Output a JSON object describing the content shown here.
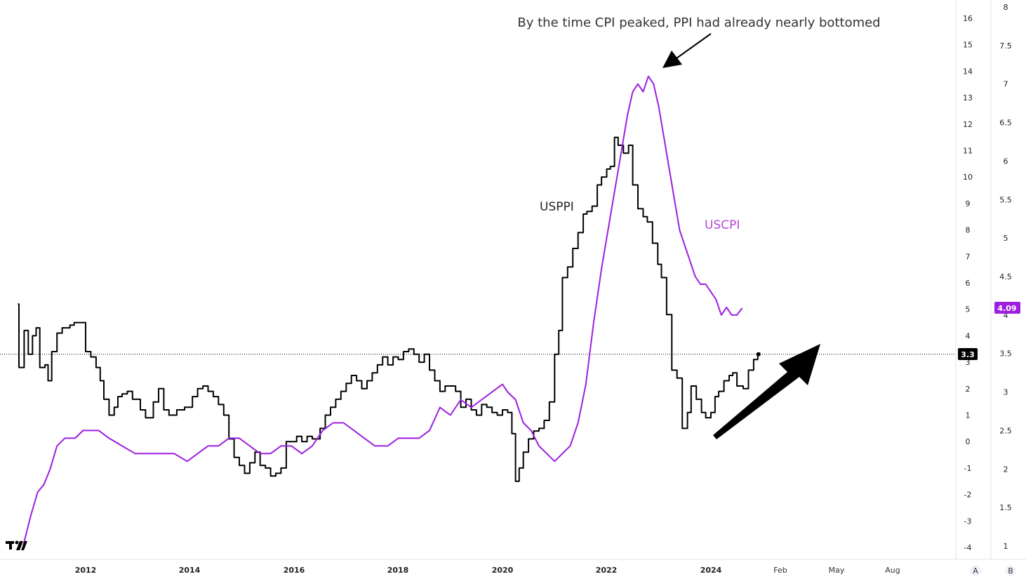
{
  "chart_data": {
    "type": "line",
    "annotation": "By the time CPI peaked, PPI had already nearly bottomed",
    "x_ticks": [
      "2012",
      "2014",
      "2016",
      "2018",
      "2020",
      "2022",
      "2024",
      "Feb",
      "May",
      "Aug"
    ],
    "left_axis": {
      "ticks": [
        16,
        15,
        14,
        13,
        12,
        11,
        10,
        9,
        8,
        7,
        6,
        5,
        4,
        3,
        2,
        1,
        0,
        -1,
        -2,
        -3,
        -4
      ],
      "range": [
        -4.5,
        16.5
      ]
    },
    "right_axis": {
      "ticks": [
        "8",
        "7.5",
        "7",
        "6.5",
        "6",
        "5.5",
        "5",
        "4.5",
        "4",
        "3.5",
        "3",
        "2.5",
        "2",
        "1.5",
        "1"
      ],
      "range": [
        1,
        8
      ]
    },
    "series": [
      {
        "name": "USPPI",
        "axis": "left",
        "color": "#000000",
        "last_value": "3.3",
        "points": [
          [
            2010.7,
            5.2
          ],
          [
            2010.72,
            2.8
          ],
          [
            2010.82,
            4.2
          ],
          [
            2010.9,
            3.3
          ],
          [
            2010.98,
            4.0
          ],
          [
            2011.05,
            4.3
          ],
          [
            2011.12,
            2.8
          ],
          [
            2011.22,
            2.9
          ],
          [
            2011.28,
            2.3
          ],
          [
            2011.35,
            3.4
          ],
          [
            2011.45,
            4.1
          ],
          [
            2011.55,
            4.3
          ],
          [
            2011.7,
            4.4
          ],
          [
            2011.78,
            4.5
          ],
          [
            2011.9,
            4.5
          ],
          [
            2012.0,
            3.4
          ],
          [
            2012.1,
            3.2
          ],
          [
            2012.2,
            2.8
          ],
          [
            2012.28,
            2.3
          ],
          [
            2012.35,
            1.6
          ],
          [
            2012.45,
            1.0
          ],
          [
            2012.55,
            1.3
          ],
          [
            2012.62,
            1.7
          ],
          [
            2012.7,
            1.8
          ],
          [
            2012.8,
            1.9
          ],
          [
            2012.9,
            1.6
          ],
          [
            2013.0,
            1.6
          ],
          [
            2013.05,
            1.2
          ],
          [
            2013.15,
            0.9
          ],
          [
            2013.3,
            1.5
          ],
          [
            2013.4,
            2.0
          ],
          [
            2013.5,
            1.2
          ],
          [
            2013.6,
            1.0
          ],
          [
            2013.75,
            1.2
          ],
          [
            2013.9,
            1.3
          ],
          [
            2014.05,
            1.7
          ],
          [
            2014.15,
            2.0
          ],
          [
            2014.25,
            2.1
          ],
          [
            2014.35,
            1.9
          ],
          [
            2014.45,
            1.7
          ],
          [
            2014.55,
            1.4
          ],
          [
            2014.65,
            1.0
          ],
          [
            2014.75,
            0.1
          ],
          [
            2014.85,
            -0.6
          ],
          [
            2014.95,
            -0.9
          ],
          [
            2015.05,
            -1.2
          ],
          [
            2015.15,
            -0.8
          ],
          [
            2015.25,
            -0.4
          ],
          [
            2015.35,
            -0.9
          ],
          [
            2015.45,
            -1.0
          ],
          [
            2015.55,
            -1.3
          ],
          [
            2015.65,
            -1.2
          ],
          [
            2015.75,
            -1.0
          ],
          [
            2015.85,
            0.0
          ],
          [
            2015.95,
            0.0
          ],
          [
            2016.05,
            0.2
          ],
          [
            2016.15,
            0.0
          ],
          [
            2016.25,
            0.2
          ],
          [
            2016.35,
            0.1
          ],
          [
            2016.5,
            0.5
          ],
          [
            2016.6,
            1.0
          ],
          [
            2016.7,
            1.3
          ],
          [
            2016.8,
            1.6
          ],
          [
            2016.9,
            1.9
          ],
          [
            2017.0,
            2.2
          ],
          [
            2017.1,
            2.5
          ],
          [
            2017.2,
            2.3
          ],
          [
            2017.3,
            2.0
          ],
          [
            2017.4,
            2.3
          ],
          [
            2017.5,
            2.6
          ],
          [
            2017.6,
            2.9
          ],
          [
            2017.7,
            3.2
          ],
          [
            2017.8,
            2.9
          ],
          [
            2017.9,
            3.2
          ],
          [
            2018.0,
            3.1
          ],
          [
            2018.1,
            3.4
          ],
          [
            2018.2,
            3.5
          ],
          [
            2018.3,
            3.3
          ],
          [
            2018.4,
            3.0
          ],
          [
            2018.5,
            3.3
          ],
          [
            2018.6,
            2.7
          ],
          [
            2018.7,
            2.3
          ],
          [
            2018.8,
            1.9
          ],
          [
            2018.9,
            2.1
          ],
          [
            2019.0,
            2.1
          ],
          [
            2019.1,
            1.9
          ],
          [
            2019.2,
            1.3
          ],
          [
            2019.3,
            1.6
          ],
          [
            2019.4,
            1.2
          ],
          [
            2019.5,
            1.0
          ],
          [
            2019.6,
            1.4
          ],
          [
            2019.7,
            1.3
          ],
          [
            2019.8,
            1.1
          ],
          [
            2019.9,
            1.0
          ],
          [
            2020.0,
            1.2
          ],
          [
            2020.1,
            1.1
          ],
          [
            2020.18,
            0.3
          ],
          [
            2020.25,
            -1.5
          ],
          [
            2020.32,
            -1.0
          ],
          [
            2020.4,
            -0.4
          ],
          [
            2020.5,
            0.1
          ],
          [
            2020.6,
            0.4
          ],
          [
            2020.7,
            0.5
          ],
          [
            2020.8,
            0.8
          ],
          [
            2020.9,
            1.5
          ],
          [
            2021.0,
            3.3
          ],
          [
            2021.08,
            4.2
          ],
          [
            2021.15,
            6.2
          ],
          [
            2021.25,
            6.6
          ],
          [
            2021.35,
            7.3
          ],
          [
            2021.45,
            7.9
          ],
          [
            2021.55,
            8.6
          ],
          [
            2021.62,
            8.7
          ],
          [
            2021.72,
            8.9
          ],
          [
            2021.82,
            9.7
          ],
          [
            2021.9,
            10.0
          ],
          [
            2022.0,
            10.3
          ],
          [
            2022.07,
            10.4
          ],
          [
            2022.15,
            11.5
          ],
          [
            2022.22,
            11.2
          ],
          [
            2022.32,
            10.9
          ],
          [
            2022.42,
            11.2
          ],
          [
            2022.5,
            9.7
          ],
          [
            2022.6,
            8.8
          ],
          [
            2022.7,
            8.5
          ],
          [
            2022.78,
            8.3
          ],
          [
            2022.88,
            7.5
          ],
          [
            2022.98,
            6.7
          ],
          [
            2023.05,
            6.2
          ],
          [
            2023.15,
            4.8
          ],
          [
            2023.25,
            2.7
          ],
          [
            2023.35,
            2.4
          ],
          [
            2023.45,
            0.5
          ],
          [
            2023.55,
            1.1
          ],
          [
            2023.62,
            2.1
          ],
          [
            2023.72,
            1.6
          ],
          [
            2023.82,
            1.1
          ],
          [
            2023.9,
            0.9
          ],
          [
            2024.0,
            1.1
          ],
          [
            2024.08,
            1.7
          ],
          [
            2024.15,
            1.9
          ],
          [
            2024.25,
            2.3
          ],
          [
            2024.35,
            2.5
          ],
          [
            2024.42,
            2.6
          ],
          [
            2024.5,
            2.1
          ],
          [
            2024.62,
            2.0
          ],
          [
            2024.72,
            2.7
          ],
          [
            2024.82,
            3.1
          ],
          [
            2024.9,
            3.3
          ]
        ]
      },
      {
        "name": "USCPI",
        "axis": "right",
        "color": "#9c1fe0",
        "last_value": "4.09",
        "points": [
          [
            2010.8,
            1.0
          ],
          [
            2010.95,
            1.4
          ],
          [
            2011.08,
            1.7
          ],
          [
            2011.2,
            1.8
          ],
          [
            2011.32,
            2.0
          ],
          [
            2011.45,
            2.3
          ],
          [
            2011.6,
            2.4
          ],
          [
            2011.8,
            2.4
          ],
          [
            2011.95,
            2.5
          ],
          [
            2012.08,
            2.5
          ],
          [
            2012.25,
            2.5
          ],
          [
            2012.45,
            2.4
          ],
          [
            2012.7,
            2.3
          ],
          [
            2012.95,
            2.2
          ],
          [
            2013.15,
            2.2
          ],
          [
            2013.4,
            2.2
          ],
          [
            2013.7,
            2.2
          ],
          [
            2013.95,
            2.1
          ],
          [
            2014.15,
            2.2
          ],
          [
            2014.35,
            2.3
          ],
          [
            2014.55,
            2.3
          ],
          [
            2014.75,
            2.4
          ],
          [
            2014.95,
            2.4
          ],
          [
            2015.15,
            2.3
          ],
          [
            2015.35,
            2.2
          ],
          [
            2015.55,
            2.2
          ],
          [
            2015.75,
            2.3
          ],
          [
            2015.95,
            2.3
          ],
          [
            2016.15,
            2.2
          ],
          [
            2016.35,
            2.3
          ],
          [
            2016.55,
            2.5
          ],
          [
            2016.75,
            2.6
          ],
          [
            2016.95,
            2.6
          ],
          [
            2017.15,
            2.5
          ],
          [
            2017.35,
            2.4
          ],
          [
            2017.55,
            2.3
          ],
          [
            2017.8,
            2.3
          ],
          [
            2018.0,
            2.4
          ],
          [
            2018.2,
            2.4
          ],
          [
            2018.4,
            2.4
          ],
          [
            2018.6,
            2.5
          ],
          [
            2018.8,
            2.8
          ],
          [
            2019.0,
            2.7
          ],
          [
            2019.2,
            2.9
          ],
          [
            2019.4,
            2.8
          ],
          [
            2019.6,
            2.9
          ],
          [
            2019.8,
            3.0
          ],
          [
            2020.0,
            3.1
          ],
          [
            2020.1,
            3.0
          ],
          [
            2020.25,
            2.9
          ],
          [
            2020.4,
            2.6
          ],
          [
            2020.55,
            2.5
          ],
          [
            2020.7,
            2.3
          ],
          [
            2020.85,
            2.2
          ],
          [
            2021.0,
            2.1
          ],
          [
            2021.15,
            2.2
          ],
          [
            2021.3,
            2.3
          ],
          [
            2021.45,
            2.6
          ],
          [
            2021.6,
            3.1
          ],
          [
            2021.75,
            3.9
          ],
          [
            2021.9,
            4.6
          ],
          [
            2022.0,
            5.0
          ],
          [
            2022.1,
            5.4
          ],
          [
            2022.2,
            5.8
          ],
          [
            2022.3,
            6.2
          ],
          [
            2022.4,
            6.6
          ],
          [
            2022.5,
            6.9
          ],
          [
            2022.6,
            7.0
          ],
          [
            2022.7,
            6.9
          ],
          [
            2022.8,
            7.1
          ],
          [
            2022.9,
            7.0
          ],
          [
            2023.0,
            6.7
          ],
          [
            2023.1,
            6.3
          ],
          [
            2023.2,
            5.9
          ],
          [
            2023.3,
            5.5
          ],
          [
            2023.4,
            5.1
          ],
          [
            2023.5,
            4.9
          ],
          [
            2023.6,
            4.7
          ],
          [
            2023.7,
            4.5
          ],
          [
            2023.8,
            4.4
          ],
          [
            2023.9,
            4.4
          ],
          [
            2024.0,
            4.3
          ],
          [
            2024.1,
            4.2
          ],
          [
            2024.2,
            4.0
          ],
          [
            2024.3,
            4.1
          ],
          [
            2024.4,
            4.0
          ],
          [
            2024.5,
            4.0
          ],
          [
            2024.6,
            4.09
          ]
        ]
      }
    ]
  },
  "labels": {
    "usppi": "USPPI",
    "uscpi": "USCPI"
  },
  "badges": {
    "cpi_value": "4.09",
    "ppi_value": "3.3",
    "scale_a": "A",
    "scale_b": "B"
  },
  "colors": {
    "cpi": "#9c1fe0",
    "ppi": "#000000",
    "badge_ppi_bg": "#000000",
    "badge_cpi_bg": "#9c1fe0"
  }
}
